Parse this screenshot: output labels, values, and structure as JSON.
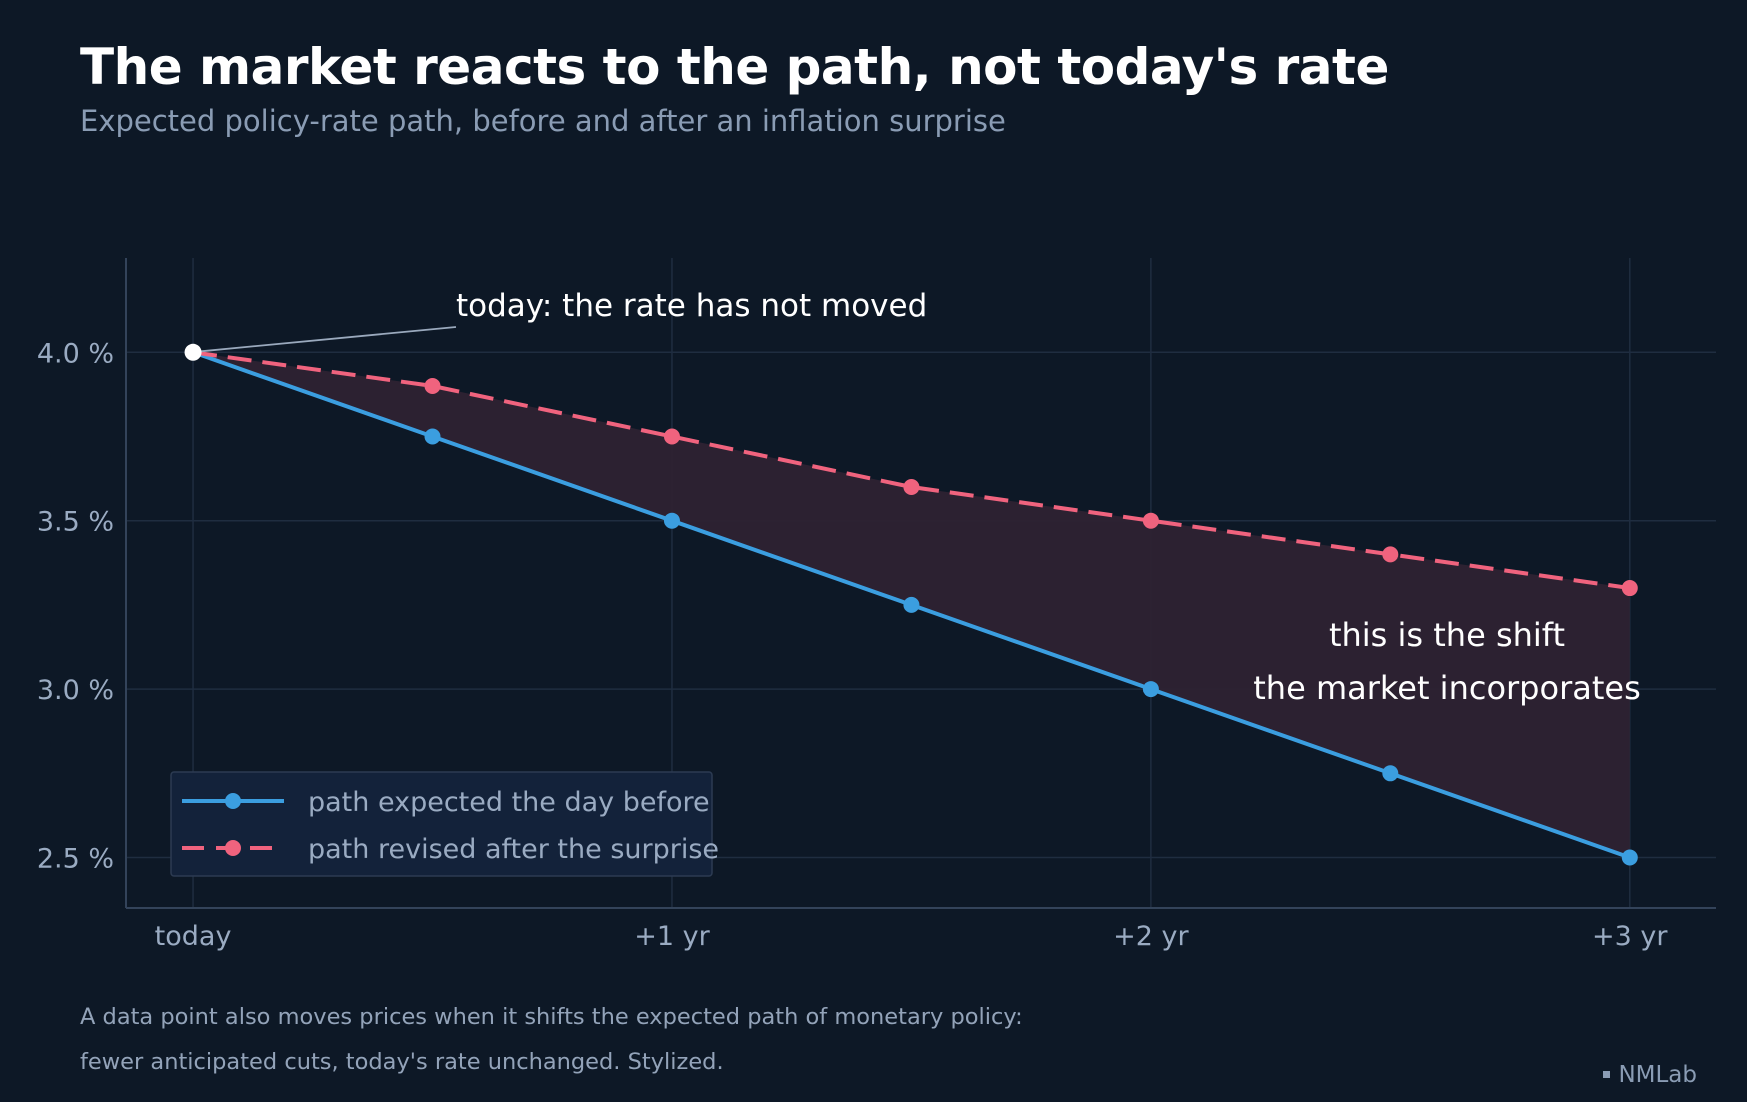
{
  "title": "The market reacts to the path, not today's rate",
  "subtitle": "Expected policy-rate path, before and after an inflation surprise",
  "footnote": {
    "line1": "A data point also moves prices when it shifts the expected path of monetary policy:",
    "line2": "fewer anticipated cuts, today's rate unchanged. Stylized."
  },
  "brand": "NMLab",
  "colors": {
    "background": "#0d1826",
    "before": "#3b9ee0",
    "after": "#f0637e",
    "gap_fill": "#2e2232",
    "grid": "#1f2d40"
  },
  "chart_data": {
    "type": "line",
    "x": [
      0,
      0.5,
      1,
      1.5,
      2,
      2.5,
      3
    ],
    "x_ticks": [
      {
        "value": 0,
        "label": "today"
      },
      {
        "value": 1,
        "label": "+1 yr"
      },
      {
        "value": 2,
        "label": "+2 yr"
      },
      {
        "value": 3,
        "label": "+3 yr"
      }
    ],
    "y_ticks": [
      {
        "value": 4.0,
        "label": "4.0 %"
      },
      {
        "value": 3.5,
        "label": "3.5 %"
      },
      {
        "value": 3.0,
        "label": "3.0 %"
      },
      {
        "value": 2.5,
        "label": "2.5 %"
      }
    ],
    "xlim": [
      -0.14,
      3.18
    ],
    "ylim": [
      2.35,
      4.28
    ],
    "grid": true,
    "legend_position": "bottom-left",
    "series": [
      {
        "name": "path expected the day before",
        "values": [
          4.0,
          3.75,
          3.5,
          3.25,
          3.0,
          2.75,
          2.5
        ],
        "color": "#3b9ee0",
        "style": "solid"
      },
      {
        "name": "path revised after the surprise",
        "values": [
          4.0,
          3.9,
          3.75,
          3.6,
          3.5,
          3.4,
          3.3
        ],
        "color": "#f0637e",
        "style": "dashed"
      }
    ],
    "shaded_between_series": true,
    "annotations": [
      {
        "text": "today: the rate has not moved",
        "x": 0,
        "y": 4.0
      },
      {
        "text": "this is the shift",
        "x": 2.6,
        "y": 3.17
      },
      {
        "text": "the market incorporates",
        "x": 2.6,
        "y": 3.01
      }
    ]
  }
}
